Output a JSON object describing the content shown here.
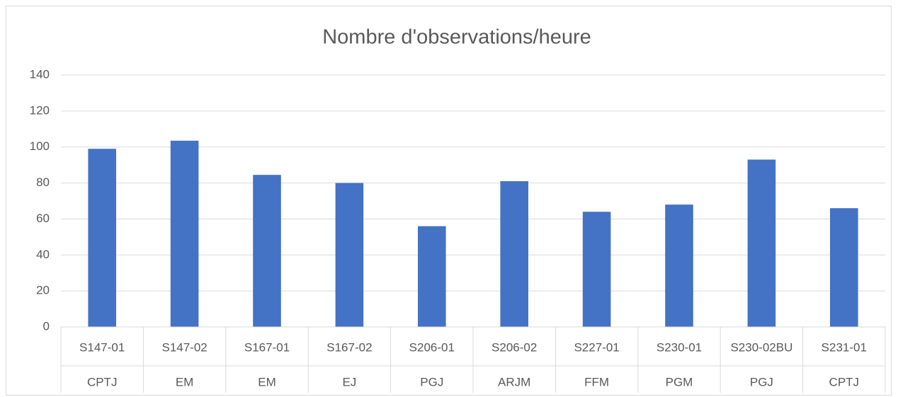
{
  "chart_data": {
    "type": "bar",
    "title": "Nombre d'observations/heure",
    "categories": [
      "S147-01",
      "S147-02",
      "S167-01",
      "S167-02",
      "S206-01",
      "S206-02",
      "S227-01",
      "S230-01",
      "S230-02BU",
      "S231-01"
    ],
    "subcategories": [
      "CPTJ",
      "EM",
      "EM",
      "EJ",
      "PGJ",
      "ARJM",
      "FFM",
      "PGM",
      "PGJ",
      "CPTJ"
    ],
    "values": [
      99,
      103.5,
      84.5,
      80,
      56,
      81,
      64,
      68,
      93,
      66
    ],
    "color": "#4472c4",
    "ylim": [
      0,
      140
    ],
    "yticks": [
      0,
      20,
      40,
      60,
      80,
      100,
      120,
      140
    ],
    "grid": true
  }
}
